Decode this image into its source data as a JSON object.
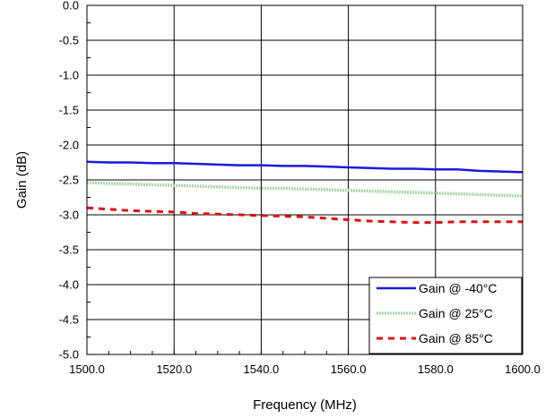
{
  "chart_data": {
    "type": "line",
    "title": "",
    "xlabel": "Frequency (MHz)",
    "ylabel": "Gain (dB)",
    "xlim": [
      1500,
      1600
    ],
    "ylim": [
      -5.0,
      0.0
    ],
    "x_ticks": [
      "1500.0",
      "1520.0",
      "1540.0",
      "1560.0",
      "1580.0",
      "1600.0"
    ],
    "y_ticks": [
      "0.0",
      "-0.5",
      "-1.0",
      "-1.5",
      "-2.0",
      "-2.5",
      "-3.0",
      "-3.5",
      "-4.0",
      "-4.5",
      "-5.0"
    ],
    "grid": true,
    "legend_position": "bottom-right",
    "series": [
      {
        "name": "Gain @ -40°C",
        "color": "#1a1adb",
        "style": "solid",
        "x": [
          1500,
          1505,
          1510,
          1515,
          1520,
          1525,
          1530,
          1535,
          1540,
          1545,
          1550,
          1555,
          1560,
          1565,
          1570,
          1575,
          1580,
          1585,
          1590,
          1595,
          1600
        ],
        "y": [
          -2.24,
          -2.25,
          -2.25,
          -2.26,
          -2.26,
          -2.27,
          -2.28,
          -2.29,
          -2.29,
          -2.3,
          -2.3,
          -2.31,
          -2.32,
          -2.33,
          -2.34,
          -2.34,
          -2.35,
          -2.35,
          -2.37,
          -2.38,
          -2.39
        ]
      },
      {
        "name": "Gain @ 25°C",
        "color": "#a8d8a8",
        "style": "dotted-thick",
        "x": [
          1500,
          1505,
          1510,
          1515,
          1520,
          1525,
          1530,
          1535,
          1540,
          1545,
          1550,
          1555,
          1560,
          1565,
          1570,
          1575,
          1580,
          1585,
          1590,
          1595,
          1600
        ],
        "y": [
          -2.54,
          -2.55,
          -2.56,
          -2.57,
          -2.58,
          -2.59,
          -2.6,
          -2.61,
          -2.62,
          -2.62,
          -2.63,
          -2.64,
          -2.65,
          -2.66,
          -2.67,
          -2.68,
          -2.69,
          -2.7,
          -2.71,
          -2.72,
          -2.73
        ]
      },
      {
        "name": "Gain @ 85°C",
        "color": "#dd1111",
        "style": "dashed",
        "x": [
          1500,
          1505,
          1510,
          1515,
          1520,
          1525,
          1530,
          1535,
          1540,
          1545,
          1550,
          1555,
          1560,
          1565,
          1570,
          1575,
          1580,
          1585,
          1590,
          1595,
          1600
        ],
        "y": [
          -2.9,
          -2.92,
          -2.94,
          -2.95,
          -2.96,
          -2.98,
          -2.99,
          -3.0,
          -3.01,
          -3.02,
          -3.03,
          -3.05,
          -3.07,
          -3.09,
          -3.1,
          -3.11,
          -3.11,
          -3.1,
          -3.1,
          -3.1,
          -3.1
        ]
      }
    ]
  }
}
